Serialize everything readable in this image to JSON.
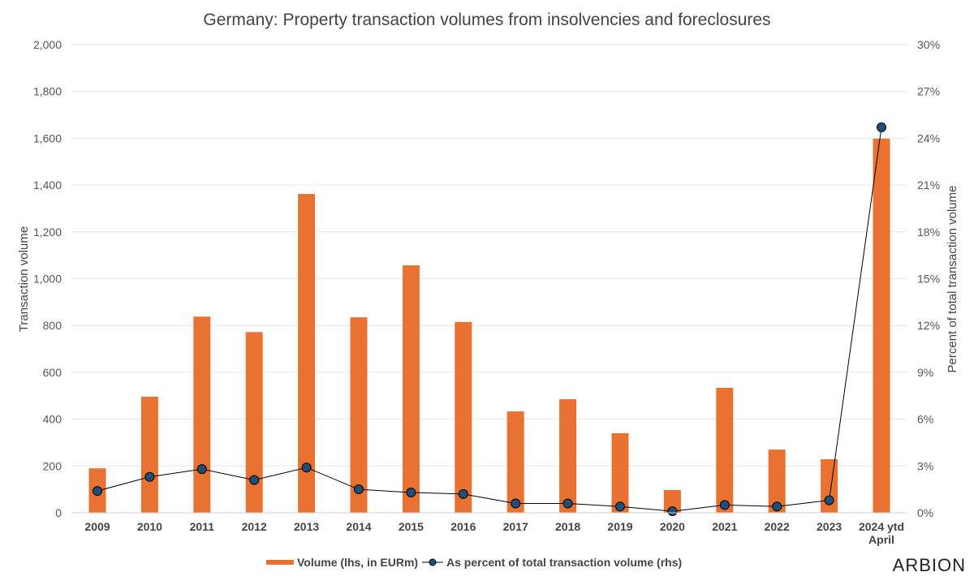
{
  "chart_data": {
    "type": "bar+line",
    "title": "Germany: Property transaction volumes from insolvencies and foreclosures",
    "ylabel": "Transaction volume",
    "y2label": "Percent of total transaction volume",
    "categories": [
      "2009",
      "2010",
      "2011",
      "2012",
      "2013",
      "2014",
      "2015",
      "2016",
      "2017",
      "2018",
      "2019",
      "2020",
      "2021",
      "2022",
      "2023",
      "2024 ytd|April"
    ],
    "ylim": [
      0,
      2000
    ],
    "yticks": [
      0,
      200,
      400,
      600,
      800,
      1000,
      1200,
      1400,
      1600,
      1800,
      2000
    ],
    "ytick_labels": [
      "0",
      "200",
      "400",
      "600",
      "800",
      "1,000",
      "1,200",
      "1,400",
      "1,600",
      "1,800",
      "2,000"
    ],
    "y2lim": [
      0,
      30
    ],
    "y2ticks": [
      0,
      3,
      6,
      9,
      12,
      15,
      18,
      21,
      24,
      27,
      30
    ],
    "y2tick_labels": [
      "0%",
      "3%",
      "6%",
      "9%",
      "12%",
      "15%",
      "18%",
      "21%",
      "24%",
      "27%",
      "30%"
    ],
    "grid": true,
    "legend_placement": "bottom",
    "series": [
      {
        "name": "Volume (lhs, in EURm)",
        "type": "bar",
        "axis": "left",
        "color": "#E97132",
        "values": [
          190,
          496,
          838,
          772,
          1362,
          835,
          1057,
          815,
          433,
          485,
          340,
          97,
          534,
          270,
          229,
          1598
        ]
      },
      {
        "name": "As percent of total transaction volume (rhs)",
        "type": "line",
        "axis": "right",
        "color": "#1F4E79",
        "line_color": "#000000",
        "values": [
          1.4,
          2.3,
          2.8,
          2.1,
          2.9,
          1.5,
          1.3,
          1.2,
          0.6,
          0.6,
          0.4,
          0.1,
          0.5,
          0.4,
          0.8,
          24.7
        ]
      }
    ]
  },
  "brand": {
    "logo_text": "ARBION"
  }
}
